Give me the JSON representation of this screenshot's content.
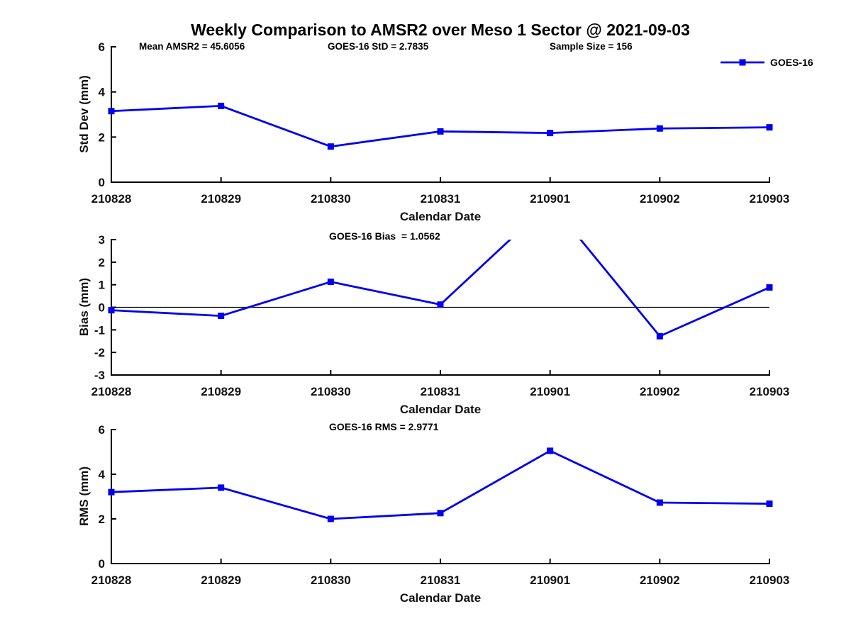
{
  "figure": {
    "title": "Weekly Comparison to AMSR2 over Meso 1 Sector @ 2021-09-03",
    "background": "#ffffff",
    "axis_color": "#000000",
    "series_color": "#0000EE"
  },
  "chart_data": [
    {
      "id": "std_dev",
      "type": "line",
      "title": "",
      "xlabel": "Calendar Date",
      "ylabel": "Std Dev (mm)",
      "ylim": [
        0,
        6
      ],
      "yticks": [
        0,
        2,
        4,
        6
      ],
      "grid": false,
      "categories": [
        "210828",
        "210829",
        "210830",
        "210831",
        "210901",
        "210902",
        "210903"
      ],
      "series": [
        {
          "name": "GOES-16",
          "color": "#0000EE",
          "marker": "square",
          "values": [
            3.15,
            3.38,
            1.58,
            2.25,
            2.18,
            2.38,
            2.43
          ]
        }
      ],
      "annotations": [
        "Mean AMSR2 = 45.6056",
        "GOES-16 StD = 2.7835",
        "Sample Size = 156"
      ],
      "legend": {
        "label": "GOES-16",
        "position": "top-right"
      }
    },
    {
      "id": "bias",
      "type": "line",
      "title": "GOES-16 Bias  = 1.0562",
      "xlabel": "Calendar Date",
      "ylabel": "Bias (mm)",
      "ylim": [
        -3,
        3
      ],
      "yticks": [
        -3,
        -2,
        -1,
        0,
        1,
        2,
        3
      ],
      "grid": false,
      "zero_line": true,
      "clipped_at_ylim": true,
      "categories": [
        "210828",
        "210829",
        "210830",
        "210831",
        "210901",
        "210902",
        "210903"
      ],
      "series": [
        {
          "name": "GOES-16",
          "color": "#0000EE",
          "marker": "square",
          "values": [
            -0.13,
            -0.38,
            1.13,
            0.12,
            4.65,
            -1.28,
            0.88
          ]
        }
      ]
    },
    {
      "id": "rms",
      "type": "line",
      "title": "GOES-16 RMS = 2.9771",
      "xlabel": "Calendar Date",
      "ylabel": "RMS (mm)",
      "ylim": [
        0,
        6
      ],
      "yticks": [
        0,
        2,
        4,
        6
      ],
      "grid": false,
      "categories": [
        "210828",
        "210829",
        "210830",
        "210831",
        "210901",
        "210902",
        "210903"
      ],
      "series": [
        {
          "name": "GOES-16",
          "color": "#0000EE",
          "marker": "square",
          "values": [
            3.2,
            3.4,
            2.0,
            2.26,
            5.05,
            2.73,
            2.68
          ]
        }
      ]
    }
  ]
}
